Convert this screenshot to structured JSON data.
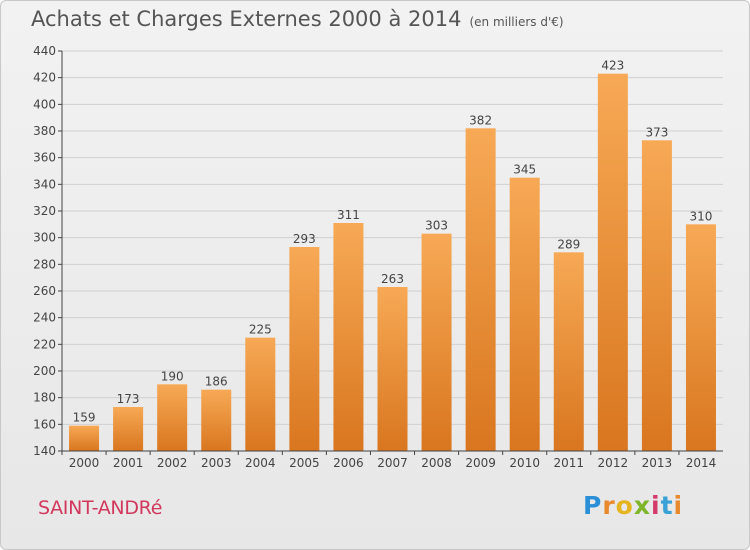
{
  "header": {
    "title": "Achats et Charges Externes 2000 à 2014",
    "subtitle": "(en milliers d'€)"
  },
  "footer": {
    "commune": "SAINT-ANDRé",
    "logo_letters": [
      "P",
      "r",
      "o",
      "x",
      "i",
      "t",
      "i"
    ]
  },
  "colors": {
    "bar_top": "#f7a955",
    "bar_bottom": "#d9761f",
    "grid": "#d0d0d0",
    "commune": "#d2385c"
  },
  "chart_data": {
    "type": "bar",
    "title": "Achats et Charges Externes 2000 à 2014",
    "subtitle": "(en milliers d'€)",
    "categories": [
      "2000",
      "2001",
      "2002",
      "2003",
      "2004",
      "2005",
      "2006",
      "2007",
      "2008",
      "2009",
      "2010",
      "2011",
      "2012",
      "2013",
      "2014"
    ],
    "values": [
      159,
      173,
      190,
      186,
      225,
      293,
      311,
      263,
      303,
      382,
      345,
      289,
      423,
      373,
      310
    ],
    "ylim": [
      140,
      440
    ],
    "yticks": [
      140,
      160,
      180,
      200,
      220,
      240,
      260,
      280,
      300,
      320,
      340,
      360,
      380,
      400,
      420,
      440
    ],
    "grid": true,
    "xlabel": "",
    "ylabel": ""
  }
}
